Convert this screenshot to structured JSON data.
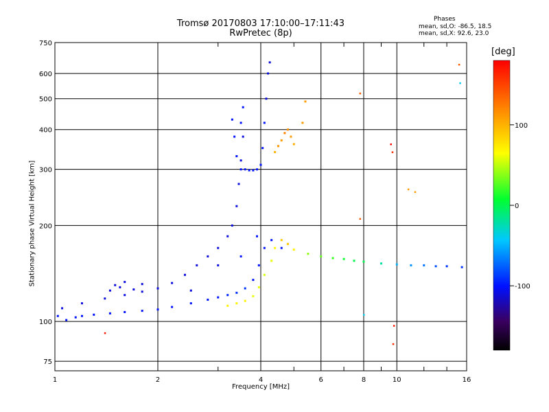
{
  "header": {
    "title_line1": "Tromsø 20170803 17:10:00–17:11:43",
    "title_line2": "RwPretec (8p)"
  },
  "stats": {
    "heading": "Phases",
    "line_o": "mean, sd,O: -86.5, 18.5",
    "line_x": "mean, sd,X:  92.6, 23.0"
  },
  "colorbar": {
    "unit": "[deg]",
    "ticks": [
      "100",
      "0",
      "-100"
    ],
    "tick_values": [
      100,
      0,
      -100
    ],
    "range": [
      -180,
      180
    ]
  },
  "chart_data": {
    "type": "scatter",
    "xlabel": "Frequency [MHz]",
    "ylabel": "Stationary phase Virtual Height [km]",
    "xscale": "log",
    "yscale": "log",
    "xlim": [
      1,
      16
    ],
    "ylim": [
      70,
      750
    ],
    "xticks": [
      1,
      2,
      4,
      6,
      8,
      10,
      16
    ],
    "xtick_labels": [
      "1",
      "2",
      "4",
      "6",
      "8",
      "10",
      "16"
    ],
    "yticks": [
      75,
      100,
      200,
      300,
      400,
      500,
      600,
      750
    ],
    "ytick_labels": [
      "75",
      "100",
      "200",
      "300",
      "400",
      "500",
      "600",
      "750"
    ],
    "grid": true,
    "color_variable": "phase [deg]",
    "series": [
      {
        "points": [
          [
            1.02,
            104,
            -100
          ],
          [
            1.08,
            101,
            -100
          ],
          [
            1.15,
            103,
            -100
          ],
          [
            1.2,
            104,
            -100
          ],
          [
            1.3,
            105,
            -100
          ],
          [
            1.45,
            106,
            -100
          ],
          [
            1.6,
            107,
            -100
          ],
          [
            1.8,
            108,
            -100
          ],
          [
            2.0,
            109,
            -100
          ],
          [
            2.2,
            111,
            -100
          ],
          [
            2.5,
            114,
            -100
          ],
          [
            2.8,
            117,
            -100
          ],
          [
            3.0,
            119,
            -100
          ],
          [
            3.2,
            121,
            -95
          ],
          [
            3.4,
            123,
            -90
          ],
          [
            3.6,
            127,
            -90
          ],
          [
            3.8,
            135,
            -100
          ],
          [
            3.95,
            150,
            -100
          ],
          [
            4.1,
            170,
            -100
          ],
          [
            4.3,
            180,
            -100
          ],
          [
            4.6,
            170,
            -100
          ]
        ]
      },
      {
        "points": [
          [
            1.05,
            110,
            -110
          ],
          [
            1.2,
            114,
            -110
          ],
          [
            1.4,
            118,
            -110
          ],
          [
            1.6,
            121,
            -110
          ],
          [
            1.8,
            124,
            -110
          ],
          [
            2.0,
            127,
            -110
          ],
          [
            2.2,
            132,
            -110
          ],
          [
            2.4,
            140,
            -110
          ],
          [
            2.6,
            150,
            -110
          ],
          [
            2.8,
            160,
            -110
          ],
          [
            3.0,
            170,
            -110
          ],
          [
            3.2,
            185,
            -110
          ],
          [
            3.3,
            200,
            -110
          ],
          [
            3.4,
            230,
            -110
          ],
          [
            3.45,
            270,
            -110
          ],
          [
            3.5,
            320,
            -110
          ],
          [
            3.55,
            380,
            -110
          ]
        ]
      },
      {
        "points": [
          [
            1.45,
            125,
            -110
          ],
          [
            1.5,
            130,
            -110
          ],
          [
            1.55,
            128,
            -110
          ],
          [
            1.6,
            133,
            -110
          ],
          [
            1.7,
            126,
            -110
          ],
          [
            1.8,
            131,
            -110
          ],
          [
            2.5,
            125,
            -110
          ],
          [
            3.0,
            150,
            -110
          ],
          [
            3.5,
            160,
            -100
          ],
          [
            3.9,
            185,
            -100
          ]
        ]
      },
      {
        "points": [
          [
            3.5,
            300,
            -100
          ],
          [
            3.6,
            300,
            -100
          ],
          [
            3.7,
            298,
            -100
          ],
          [
            3.8,
            298,
            -100
          ],
          [
            3.9,
            300,
            -100
          ],
          [
            4.0,
            310,
            -100
          ],
          [
            4.05,
            350,
            -100
          ],
          [
            4.1,
            420,
            -100
          ],
          [
            4.15,
            500,
            -110
          ],
          [
            4.2,
            600,
            -110
          ],
          [
            4.25,
            650,
            -110
          ],
          [
            3.4,
            330,
            -100
          ],
          [
            3.35,
            380,
            -100
          ],
          [
            3.5,
            420,
            -100
          ],
          [
            3.55,
            470,
            -100
          ],
          [
            3.3,
            430,
            -100
          ]
        ]
      },
      {
        "points": [
          [
            3.2,
            112,
            70
          ],
          [
            3.4,
            114,
            70
          ],
          [
            3.6,
            116,
            70
          ],
          [
            3.8,
            120,
            60
          ],
          [
            3.95,
            128,
            60
          ],
          [
            4.1,
            140,
            55
          ],
          [
            4.3,
            155,
            60
          ],
          [
            4.4,
            170,
            70
          ],
          [
            4.6,
            180,
            90
          ],
          [
            4.8,
            175,
            90
          ],
          [
            5.0,
            168,
            70
          ],
          [
            5.5,
            163,
            40
          ],
          [
            6.0,
            160,
            30
          ],
          [
            6.5,
            158,
            20
          ],
          [
            7.0,
            157,
            10
          ],
          [
            7.5,
            155,
            0
          ],
          [
            8.0,
            154,
            0
          ],
          [
            9.0,
            152,
            -20
          ],
          [
            10.0,
            151,
            -50
          ],
          [
            11.0,
            150,
            -60
          ],
          [
            12.0,
            150,
            -70
          ],
          [
            13.0,
            149,
            -80
          ],
          [
            14.0,
            149,
            -90
          ],
          [
            15.5,
            148,
            -90
          ]
        ]
      },
      {
        "points": [
          [
            4.4,
            340,
            100
          ],
          [
            4.5,
            355,
            110
          ],
          [
            4.6,
            370,
            110
          ],
          [
            4.7,
            390,
            120
          ],
          [
            4.8,
            400,
            115
          ],
          [
            4.9,
            380,
            110
          ],
          [
            5.0,
            360,
            100
          ],
          [
            5.3,
            420,
            110
          ],
          [
            5.4,
            490,
            110
          ]
        ]
      }
    ],
    "annotations": [
      [
        1.4,
        92,
        170
      ],
      [
        9.6,
        360,
        180
      ],
      [
        9.7,
        340,
        160
      ],
      [
        9.8,
        97,
        170
      ],
      [
        9.75,
        85,
        160
      ],
      [
        7.8,
        520,
        140
      ],
      [
        7.8,
        210,
        140
      ],
      [
        15.2,
        640,
        140
      ],
      [
        10.8,
        260,
        110
      ],
      [
        11.3,
        255,
        110
      ],
      [
        8.0,
        105,
        -40
      ],
      [
        15.3,
        560,
        -40
      ]
    ]
  }
}
